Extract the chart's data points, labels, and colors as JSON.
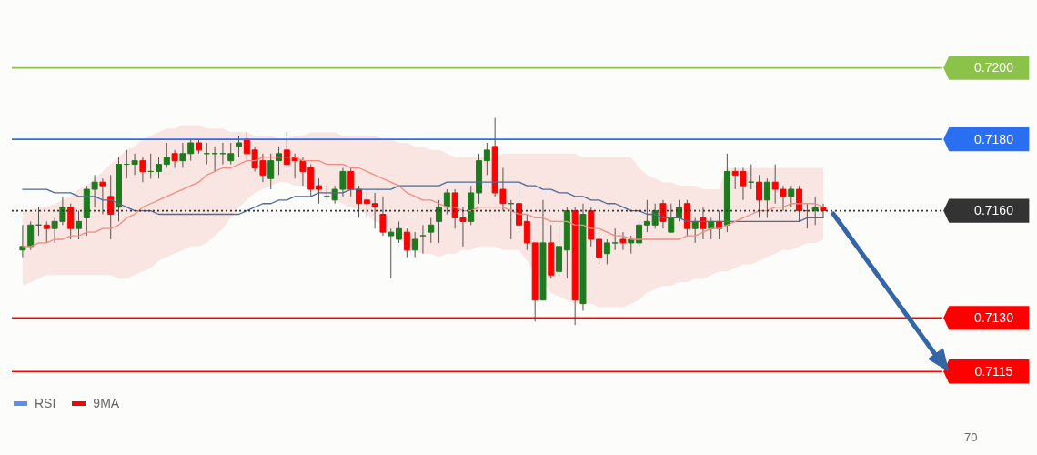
{
  "chart_data": [
    {
      "type": "candlestick",
      "yticks": [
        {
          "value": 0.72,
          "label": "0.7200"
        },
        {
          "value": 0.718,
          "label": "0.7180"
        },
        {
          "value": 0.716,
          "label": "0.7160"
        },
        {
          "value": 0.713,
          "label": "0.7130"
        },
        {
          "value": 0.7115,
          "label": "0.7115"
        }
      ],
      "categories": [
        null,
        null,
        null,
        null,
        null,
        null,
        null,
        null,
        null,
        null,
        null,
        null,
        null,
        null,
        null,
        null,
        null,
        null,
        null,
        null,
        null,
        null,
        null,
        null,
        null,
        null,
        null,
        null,
        null,
        null,
        null,
        null,
        null,
        null,
        null,
        null,
        null,
        null,
        null,
        null,
        null,
        null,
        null,
        null,
        null,
        null,
        null,
        null,
        null,
        null,
        null,
        null,
        null,
        null,
        null,
        null,
        null,
        null,
        null,
        null,
        null,
        null,
        null,
        null,
        null,
        null,
        null,
        null,
        null,
        null,
        null,
        null,
        null,
        null,
        null,
        null,
        null,
        null,
        null,
        null,
        null,
        null,
        null,
        null,
        null,
        null,
        null,
        null,
        null,
        null,
        null,
        null,
        null,
        null,
        null,
        null,
        null,
        null,
        null,
        null,
        null
      ],
      "ylim": [
        0.7112,
        0.7219
      ],
      "ohlc": [
        [
          0.7149,
          0.7156,
          0.7147,
          0.715
        ],
        [
          0.715,
          0.7157,
          0.7149,
          0.7156
        ],
        [
          0.7156,
          0.7161,
          0.7153,
          0.7156
        ],
        [
          0.7156,
          0.7157,
          0.7151,
          0.7155
        ],
        [
          0.7155,
          0.7158,
          0.7151,
          0.7157
        ],
        [
          0.7157,
          0.7164,
          0.7156,
          0.7161
        ],
        [
          0.7161,
          0.7162,
          0.7152,
          0.7155
        ],
        [
          0.7155,
          0.716,
          0.7152,
          0.7157
        ],
        [
          0.7158,
          0.7167,
          0.7153,
          0.7166
        ],
        [
          0.7166,
          0.717,
          0.7161,
          0.7168
        ],
        [
          0.7168,
          0.7169,
          0.7159,
          0.7167
        ],
        [
          0.7164,
          0.717,
          0.7152,
          0.7159
        ],
        [
          0.7161,
          0.7175,
          0.7157,
          0.7173
        ],
        [
          0.7173,
          0.7177,
          0.7169,
          0.7173
        ],
        [
          0.7173,
          0.7176,
          0.717,
          0.7174
        ],
        [
          0.7174,
          0.7175,
          0.7168,
          0.7171
        ],
        [
          0.7171,
          0.7176,
          0.7169,
          0.7171
        ],
        [
          0.7171,
          0.7175,
          0.7169,
          0.7173
        ],
        [
          0.7173,
          0.7179,
          0.7172,
          0.7175
        ],
        [
          0.7176,
          0.7177,
          0.7172,
          0.7174
        ],
        [
          0.7174,
          0.7179,
          0.7172,
          0.7176
        ],
        [
          0.7176,
          0.718,
          0.7174,
          0.7179
        ],
        [
          0.7179,
          0.718,
          0.7176,
          0.7177
        ],
        [
          0.7176,
          0.7179,
          0.7173,
          0.7176
        ],
        [
          0.7176,
          0.7178,
          0.7171,
          0.7176
        ],
        [
          0.7176,
          0.7179,
          0.7173,
          0.7176
        ],
        [
          0.7174,
          0.7179,
          0.7173,
          0.7176
        ],
        [
          0.7178,
          0.7181,
          0.7175,
          0.7179
        ],
        [
          0.718,
          0.7182,
          0.7174,
          0.7176
        ],
        [
          0.7177,
          0.7178,
          0.7171,
          0.7172
        ],
        [
          0.7174,
          0.7176,
          0.7168,
          0.717
        ],
        [
          0.7169,
          0.7176,
          0.7166,
          0.7174
        ],
        [
          0.7174,
          0.7178,
          0.717,
          0.7176
        ],
        [
          0.7177,
          0.7182,
          0.7172,
          0.7173
        ],
        [
          0.7175,
          0.7176,
          0.7169,
          0.7174
        ],
        [
          0.7174,
          0.7175,
          0.7167,
          0.7171
        ],
        [
          0.7172,
          0.7173,
          0.7164,
          0.7166
        ],
        [
          0.7167,
          0.7169,
          0.7162,
          0.7166
        ],
        [
          0.7164,
          0.7167,
          0.7163,
          0.7164
        ],
        [
          0.7163,
          0.7167,
          0.7162,
          0.7166
        ],
        [
          0.7166,
          0.7172,
          0.7164,
          0.7171
        ],
        [
          0.7171,
          0.7172,
          0.7164,
          0.7166
        ],
        [
          0.7166,
          0.7167,
          0.7158,
          0.7162
        ],
        [
          0.7163,
          0.7165,
          0.7158,
          0.7162
        ],
        [
          0.7162,
          0.7165,
          0.7155,
          0.7161
        ],
        [
          0.7159,
          0.7164,
          0.7153,
          0.7154
        ],
        [
          0.7153,
          0.7155,
          0.7141,
          0.7154
        ],
        [
          0.7152,
          0.7157,
          0.7151,
          0.7155
        ],
        [
          0.7154,
          0.7155,
          0.7147,
          0.7149
        ],
        [
          0.7149,
          0.7154,
          0.7147,
          0.7152
        ],
        [
          0.7153,
          0.7156,
          0.7148,
          0.7153
        ],
        [
          0.7154,
          0.7158,
          0.7151,
          0.7156
        ],
        [
          0.7157,
          0.7163,
          0.7151,
          0.7161
        ],
        [
          0.7161,
          0.7166,
          0.7159,
          0.7165
        ],
        [
          0.7165,
          0.7166,
          0.7155,
          0.7158
        ],
        [
          0.7158,
          0.7161,
          0.715,
          0.7157
        ],
        [
          0.7157,
          0.7167,
          0.7156,
          0.7165
        ],
        [
          0.7165,
          0.7176,
          0.7162,
          0.7174
        ],
        [
          0.7174,
          0.7179,
          0.717,
          0.7177
        ],
        [
          0.7178,
          0.7186,
          0.7164,
          0.7165
        ],
        [
          0.7166,
          0.7172,
          0.716,
          0.7162
        ],
        [
          0.7162,
          0.7163,
          0.7152,
          0.7162
        ],
        [
          0.7162,
          0.7167,
          0.7154,
          0.7156
        ],
        [
          0.7157,
          0.7159,
          0.7149,
          0.7151
        ],
        [
          0.7151,
          0.7151,
          0.7129,
          0.7135
        ],
        [
          0.7135,
          0.7163,
          0.7135,
          0.7151
        ],
        [
          0.7151,
          0.7156,
          0.7141,
          0.7142
        ],
        [
          0.7143,
          0.7156,
          0.7141,
          0.715
        ],
        [
          0.7149,
          0.7161,
          0.7141,
          0.716
        ],
        [
          0.716,
          0.7161,
          0.7128,
          0.7135
        ],
        [
          0.7134,
          0.7162,
          0.7132,
          0.7159
        ],
        [
          0.716,
          0.7161,
          0.715,
          0.7152
        ],
        [
          0.7152,
          0.7154,
          0.7145,
          0.7147
        ],
        [
          0.7148,
          0.7152,
          0.7145,
          0.7151
        ],
        [
          0.7151,
          0.7155,
          0.7149,
          0.7151
        ],
        [
          0.7152,
          0.7154,
          0.7149,
          0.7151
        ],
        [
          0.7151,
          0.7153,
          0.7148,
          0.7152
        ],
        [
          0.7151,
          0.7157,
          0.715,
          0.7156
        ],
        [
          0.7156,
          0.7163,
          0.7154,
          0.7157
        ],
        [
          0.7156,
          0.7162,
          0.7155,
          0.716
        ],
        [
          0.7162,
          0.7163,
          0.7155,
          0.7157
        ],
        [
          0.7154,
          0.7162,
          0.7154,
          0.7158
        ],
        [
          0.7158,
          0.7163,
          0.7157,
          0.7161
        ],
        [
          0.7162,
          0.7163,
          0.7153,
          0.7155
        ],
        [
          0.7155,
          0.7158,
          0.7151,
          0.7157
        ],
        [
          0.7158,
          0.7161,
          0.7152,
          0.7155
        ],
        [
          0.7155,
          0.7158,
          0.7152,
          0.7157
        ],
        [
          0.7157,
          0.716,
          0.7152,
          0.7155
        ],
        [
          0.7156,
          0.7176,
          0.7154,
          0.7171
        ],
        [
          0.7171,
          0.7172,
          0.7166,
          0.717
        ],
        [
          0.7171,
          0.7172,
          0.7163,
          0.7167
        ],
        [
          0.7168,
          0.7173,
          0.7166,
          0.7168
        ],
        [
          0.7168,
          0.717,
          0.7158,
          0.7163
        ],
        [
          0.7163,
          0.7169,
          0.7158,
          0.7168
        ],
        [
          0.7168,
          0.7173,
          0.7162,
          0.7166
        ],
        [
          0.7166,
          0.7167,
          0.716,
          0.7164
        ],
        [
          0.7164,
          0.7167,
          0.7161,
          0.7166
        ],
        [
          0.7166,
          0.7167,
          0.7157,
          0.716
        ],
        [
          0.716,
          0.7162,
          0.7155,
          0.716
        ],
        [
          0.716,
          0.7164,
          0.7156,
          0.7161
        ],
        [
          0.7161,
          0.7162,
          0.7158,
          0.716
        ]
      ],
      "colors": [
        "#1f7a1f",
        "#1f7a1f",
        "#1f7a1f",
        "#ff0000",
        "#1f7a1f",
        "#1f7a1f",
        "#ff0000",
        "#1f7a1f",
        "#1f7a1f",
        "#1f7a1f",
        "#ff0000",
        "#ff0000",
        "#1f7a1f",
        "#1f7a1f",
        "#1f7a1f",
        "#ff0000",
        "#1f7a1f",
        "#1f7a1f",
        "#1f7a1f",
        "#ff0000",
        "#1f7a1f",
        "#1f7a1f",
        "#ff0000",
        "#1f7a1f",
        "#1f7a1f",
        "#1f7a1f",
        "#1f7a1f",
        "#1f7a1f",
        "#ff0000",
        "#ff0000",
        "#ff0000",
        "#1f7a1f",
        "#1f7a1f",
        "#ff0000",
        "#ff0000",
        "#ff0000",
        "#ff0000",
        "#ff0000",
        "#1f7a1f",
        "#1f7a1f",
        "#1f7a1f",
        "#ff0000",
        "#ff0000",
        "#ff0000",
        "#ff0000",
        "#ff0000",
        "#1f7a1f",
        "#1f7a1f",
        "#ff0000",
        "#1f7a1f",
        "#1f7a1f",
        "#1f7a1f",
        "#1f7a1f",
        "#1f7a1f",
        "#ff0000",
        "#ff0000",
        "#1f7a1f",
        "#1f7a1f",
        "#1f7a1f",
        "#ff0000",
        "#ff0000",
        "#1f7a1f",
        "#ff0000",
        "#ff0000",
        "#ff0000",
        "#1f7a1f",
        "#ff0000",
        "#1f7a1f",
        "#1f7a1f",
        "#ff0000",
        "#1f7a1f",
        "#ff0000",
        "#ff0000",
        "#1f7a1f",
        "#1f7a1f",
        "#ff0000",
        "#1f7a1f",
        "#1f7a1f",
        "#1f7a1f",
        "#1f7a1f",
        "#ff0000",
        "#1f7a1f",
        "#1f7a1f",
        "#ff0000",
        "#1f7a1f",
        "#ff0000",
        "#1f7a1f",
        "#ff0000",
        "#1f7a1f",
        "#ff0000",
        "#ff0000",
        "#1f7a1f",
        "#ff0000",
        "#1f7a1f",
        "#ff0000",
        "#ff0000",
        "#1f7a1f",
        "#ff0000",
        "#1f7a1f",
        "#1f7a1f",
        "#ff0000"
      ],
      "series": [
        {
          "type": "line",
          "color": "#4a6b9c",
          "values": [
            0.7166,
            0.7166,
            0.7166,
            0.7166,
            0.7165,
            0.7165,
            0.7165,
            0.7164,
            0.7164,
            0.7164,
            0.7163,
            0.7163,
            0.7162,
            0.7161,
            0.716,
            0.716,
            0.716,
            0.7159,
            0.7159,
            0.7159,
            0.7159,
            0.7159,
            0.7159,
            0.7159,
            0.7159,
            0.7159,
            0.7159,
            0.7159,
            0.716,
            0.7161,
            0.7162,
            0.7162,
            0.7163,
            0.7163,
            0.7164,
            0.7164,
            0.7164,
            0.7165,
            0.7165,
            0.7165,
            0.7165,
            0.7166,
            0.7166,
            0.7166,
            0.7166,
            0.7166,
            0.7166,
            0.7167,
            0.7167,
            0.7167,
            0.7167,
            0.7167,
            0.7167,
            0.7168,
            0.7168,
            0.7168,
            0.7168,
            0.7168,
            0.7168,
            0.7168,
            0.7168,
            0.7168,
            0.7168,
            0.7167,
            0.7167,
            0.7166,
            0.7166,
            0.7165,
            0.7165,
            0.7164,
            0.7164,
            0.7163,
            0.7163,
            0.7162,
            0.7162,
            0.7161,
            0.716,
            0.716,
            0.7159,
            0.7159,
            0.7158,
            0.7158,
            0.7158,
            0.7157,
            0.7157,
            0.7157,
            0.7157,
            0.7157,
            0.7157,
            0.7157,
            0.7157,
            0.7157,
            0.7157,
            0.7157,
            0.7157,
            0.7157,
            0.7157,
            0.7157,
            0.7158,
            0.7158,
            0.7158
          ]
        },
        {
          "type": "line",
          "color": "#f28b82",
          "values": [
            0.715,
            0.715,
            0.7151,
            0.7151,
            0.7152,
            0.7152,
            0.7153,
            0.7153,
            0.7154,
            0.7154,
            0.7155,
            0.7155,
            0.7156,
            0.7158,
            0.7159,
            0.7161,
            0.7162,
            0.7163,
            0.7164,
            0.7165,
            0.7166,
            0.7167,
            0.7168,
            0.717,
            0.7171,
            0.7172,
            0.7172,
            0.7173,
            0.7174,
            0.7174,
            0.7175,
            0.7175,
            0.7175,
            0.7175,
            0.7175,
            0.7174,
            0.7174,
            0.7174,
            0.7173,
            0.7173,
            0.7173,
            0.7172,
            0.7172,
            0.7171,
            0.717,
            0.7169,
            0.7168,
            0.7167,
            0.7165,
            0.7164,
            0.7163,
            0.7163,
            0.7162,
            0.7161,
            0.7161,
            0.716,
            0.716,
            0.7161,
            0.7161,
            0.7161,
            0.7161,
            0.716,
            0.7159,
            0.7159,
            0.7158,
            0.7158,
            0.7157,
            0.7157,
            0.7157,
            0.7156,
            0.7156,
            0.7155,
            0.7155,
            0.7154,
            0.7153,
            0.7153,
            0.7152,
            0.7152,
            0.7152,
            0.7152,
            0.7152,
            0.7152,
            0.7152,
            0.7153,
            0.7153,
            0.7154,
            0.7155,
            0.7155,
            0.7156,
            0.7157,
            0.7158,
            0.7159,
            0.716,
            0.716,
            0.7161,
            0.7161,
            0.7162,
            0.7162,
            0.7162,
            0.7162,
            0.7161
          ],
          "upper": [
            0.716,
            0.716,
            0.7161,
            0.7161,
            0.7162,
            0.7163,
            0.7164,
            0.7166,
            0.7167,
            0.7169,
            0.7171,
            0.7173,
            0.7175,
            0.7177,
            0.7178,
            0.718,
            0.7181,
            0.7182,
            0.7183,
            0.7183,
            0.7184,
            0.7184,
            0.7184,
            0.7183,
            0.7183,
            0.7183,
            0.7182,
            0.7182,
            0.7182,
            0.7181,
            0.7181,
            0.7181,
            0.718,
            0.718,
            0.7181,
            0.7181,
            0.7182,
            0.7182,
            0.7182,
            0.7182,
            0.7181,
            0.7181,
            0.7181,
            0.7181,
            0.7181,
            0.718,
            0.718,
            0.7179,
            0.7179,
            0.7178,
            0.7178,
            0.7177,
            0.7177,
            0.7176,
            0.7175,
            0.7175,
            0.7175,
            0.7175,
            0.7175,
            0.7175,
            0.7176,
            0.7176,
            0.7176,
            0.7176,
            0.7176,
            0.7176,
            0.7176,
            0.7176,
            0.7176,
            0.7176,
            0.7175,
            0.7175,
            0.7175,
            0.7175,
            0.7175,
            0.7175,
            0.7175,
            0.7172,
            0.717,
            0.7169,
            0.7168,
            0.7168,
            0.7167,
            0.7167,
            0.7167,
            0.7166,
            0.7166,
            0.7166,
            0.7172,
            0.7172,
            0.7172,
            0.7172,
            0.7172,
            0.7172,
            0.7172,
            0.7172,
            0.7172,
            0.7172,
            0.7172,
            0.7172,
            0.7172
          ],
          "lower": [
            0.7139,
            0.714,
            0.7141,
            0.7142,
            0.7142,
            0.7142,
            0.7142,
            0.7142,
            0.7142,
            0.7142,
            0.7142,
            0.7142,
            0.7141,
            0.7141,
            0.7142,
            0.7143,
            0.7144,
            0.7146,
            0.7147,
            0.7148,
            0.7149,
            0.715,
            0.715,
            0.7151,
            0.7153,
            0.7155,
            0.7158,
            0.7161,
            0.7163,
            0.7165,
            0.7166,
            0.7167,
            0.7168,
            0.7168,
            0.7167,
            0.7167,
            0.7166,
            0.7165,
            0.7164,
            0.7163,
            0.7162,
            0.7161,
            0.716,
            0.7159,
            0.7157,
            0.7156,
            0.7154,
            0.7152,
            0.7151,
            0.7149,
            0.7148,
            0.7148,
            0.7147,
            0.7148,
            0.7148,
            0.7149,
            0.7149,
            0.715,
            0.715,
            0.715,
            0.7149,
            0.7149,
            0.7149,
            0.7146,
            0.7143,
            0.714,
            0.7137,
            0.7136,
            0.7135,
            0.7134,
            0.7134,
            0.7134,
            0.7133,
            0.7133,
            0.7133,
            0.7133,
            0.7134,
            0.7135,
            0.7137,
            0.7138,
            0.7139,
            0.7139,
            0.714,
            0.714,
            0.7141,
            0.7141,
            0.7142,
            0.7143,
            0.7143,
            0.7144,
            0.7145,
            0.7145,
            0.7146,
            0.7147,
            0.7148,
            0.7149,
            0.7149,
            0.715,
            0.7151,
            0.7151,
            0.7152
          ]
        }
      ],
      "ref_lines": [
        {
          "axis": "y",
          "value": 0.72,
          "color": "#8bc34a"
        },
        {
          "axis": "y",
          "value": 0.718,
          "color": "#2a6ef2"
        },
        {
          "axis": "y",
          "value": 0.716,
          "color": "#333333",
          "line_style": "dotted"
        },
        {
          "axis": "y",
          "value": 0.713,
          "color": "#ff0000"
        },
        {
          "axis": "y",
          "value": 0.7115,
          "color": "#ff0000"
        }
      ]
    },
    {
      "type": "other",
      "legend": "top left",
      "annotations": [
        "70"
      ],
      "series": [
        {
          "name": "RSI",
          "color": "#5b8def"
        },
        {
          "name": "9MA",
          "color": "#ff0000"
        }
      ]
    }
  ]
}
